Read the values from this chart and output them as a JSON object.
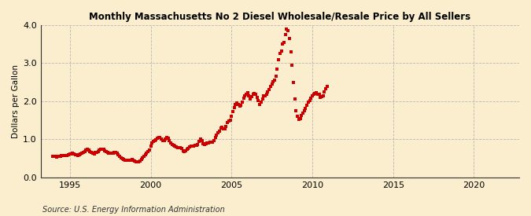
{
  "title": "Monthly Massachusetts No 2 Diesel Wholesale/Resale Price by All Sellers",
  "ylabel": "Dollars per Gallon",
  "source": "Source: U.S. Energy Information Administration",
  "background_color": "#faeecf",
  "dot_color": "#cc0000",
  "xlim": [
    1993.2,
    2022.8
  ],
  "ylim": [
    0.0,
    4.0
  ],
  "yticks": [
    0.0,
    1.0,
    2.0,
    3.0,
    4.0
  ],
  "xticks": [
    1995,
    2000,
    2005,
    2010,
    2015,
    2020
  ],
  "data": [
    [
      1993.917,
      0.56
    ],
    [
      1994.0,
      0.55
    ],
    [
      1994.083,
      0.55
    ],
    [
      1994.167,
      0.54
    ],
    [
      1994.25,
      0.55
    ],
    [
      1994.333,
      0.55
    ],
    [
      1994.417,
      0.56
    ],
    [
      1994.5,
      0.57
    ],
    [
      1994.583,
      0.58
    ],
    [
      1994.667,
      0.57
    ],
    [
      1994.75,
      0.57
    ],
    [
      1994.833,
      0.58
    ],
    [
      1994.917,
      0.6
    ],
    [
      1995.0,
      0.61
    ],
    [
      1995.083,
      0.61
    ],
    [
      1995.167,
      0.63
    ],
    [
      1995.25,
      0.62
    ],
    [
      1995.333,
      0.6
    ],
    [
      1995.417,
      0.59
    ],
    [
      1995.5,
      0.58
    ],
    [
      1995.583,
      0.59
    ],
    [
      1995.667,
      0.61
    ],
    [
      1995.75,
      0.64
    ],
    [
      1995.833,
      0.66
    ],
    [
      1995.917,
      0.68
    ],
    [
      1996.0,
      0.72
    ],
    [
      1996.083,
      0.73
    ],
    [
      1996.167,
      0.72
    ],
    [
      1996.25,
      0.68
    ],
    [
      1996.333,
      0.65
    ],
    [
      1996.417,
      0.63
    ],
    [
      1996.5,
      0.62
    ],
    [
      1996.583,
      0.65
    ],
    [
      1996.667,
      0.66
    ],
    [
      1996.75,
      0.68
    ],
    [
      1996.833,
      0.72
    ],
    [
      1996.917,
      0.74
    ],
    [
      1997.0,
      0.75
    ],
    [
      1997.083,
      0.73
    ],
    [
      1997.167,
      0.7
    ],
    [
      1997.25,
      0.68
    ],
    [
      1997.333,
      0.65
    ],
    [
      1997.417,
      0.64
    ],
    [
      1997.5,
      0.63
    ],
    [
      1997.583,
      0.63
    ],
    [
      1997.667,
      0.64
    ],
    [
      1997.75,
      0.65
    ],
    [
      1997.833,
      0.65
    ],
    [
      1997.917,
      0.63
    ],
    [
      1998.0,
      0.6
    ],
    [
      1998.083,
      0.56
    ],
    [
      1998.167,
      0.52
    ],
    [
      1998.25,
      0.49
    ],
    [
      1998.333,
      0.47
    ],
    [
      1998.417,
      0.46
    ],
    [
      1998.5,
      0.45
    ],
    [
      1998.583,
      0.46
    ],
    [
      1998.667,
      0.46
    ],
    [
      1998.75,
      0.46
    ],
    [
      1998.833,
      0.47
    ],
    [
      1998.917,
      0.46
    ],
    [
      1999.0,
      0.43
    ],
    [
      1999.083,
      0.4
    ],
    [
      1999.167,
      0.4
    ],
    [
      1999.25,
      0.42
    ],
    [
      1999.333,
      0.44
    ],
    [
      1999.417,
      0.48
    ],
    [
      1999.5,
      0.52
    ],
    [
      1999.583,
      0.55
    ],
    [
      1999.667,
      0.6
    ],
    [
      1999.75,
      0.64
    ],
    [
      1999.833,
      0.68
    ],
    [
      1999.917,
      0.72
    ],
    [
      2000.0,
      0.82
    ],
    [
      2000.083,
      0.9
    ],
    [
      2000.167,
      0.95
    ],
    [
      2000.25,
      0.96
    ],
    [
      2000.333,
      0.98
    ],
    [
      2000.417,
      1.02
    ],
    [
      2000.5,
      1.05
    ],
    [
      2000.583,
      1.04
    ],
    [
      2000.667,
      1.0
    ],
    [
      2000.75,
      0.96
    ],
    [
      2000.833,
      0.97
    ],
    [
      2000.917,
      1.01
    ],
    [
      2001.0,
      1.05
    ],
    [
      2001.083,
      1.02
    ],
    [
      2001.167,
      0.96
    ],
    [
      2001.25,
      0.9
    ],
    [
      2001.333,
      0.87
    ],
    [
      2001.417,
      0.85
    ],
    [
      2001.5,
      0.82
    ],
    [
      2001.583,
      0.8
    ],
    [
      2001.667,
      0.78
    ],
    [
      2001.75,
      0.78
    ],
    [
      2001.833,
      0.78
    ],
    [
      2001.917,
      0.76
    ],
    [
      2002.0,
      0.7
    ],
    [
      2002.083,
      0.68
    ],
    [
      2002.167,
      0.7
    ],
    [
      2002.25,
      0.74
    ],
    [
      2002.333,
      0.76
    ],
    [
      2002.417,
      0.8
    ],
    [
      2002.5,
      0.82
    ],
    [
      2002.583,
      0.83
    ],
    [
      2002.667,
      0.83
    ],
    [
      2002.75,
      0.84
    ],
    [
      2002.833,
      0.85
    ],
    [
      2002.917,
      0.87
    ],
    [
      2003.0,
      0.95
    ],
    [
      2003.083,
      1.0
    ],
    [
      2003.167,
      0.97
    ],
    [
      2003.25,
      0.88
    ],
    [
      2003.333,
      0.86
    ],
    [
      2003.417,
      0.88
    ],
    [
      2003.5,
      0.9
    ],
    [
      2003.583,
      0.91
    ],
    [
      2003.667,
      0.93
    ],
    [
      2003.75,
      0.93
    ],
    [
      2003.833,
      0.93
    ],
    [
      2003.917,
      0.96
    ],
    [
      2004.0,
      1.05
    ],
    [
      2004.083,
      1.12
    ],
    [
      2004.167,
      1.18
    ],
    [
      2004.25,
      1.21
    ],
    [
      2004.333,
      1.3
    ],
    [
      2004.417,
      1.32
    ],
    [
      2004.5,
      1.28
    ],
    [
      2004.583,
      1.27
    ],
    [
      2004.667,
      1.34
    ],
    [
      2004.75,
      1.45
    ],
    [
      2004.833,
      1.48
    ],
    [
      2004.917,
      1.5
    ],
    [
      2005.0,
      1.6
    ],
    [
      2005.083,
      1.73
    ],
    [
      2005.167,
      1.83
    ],
    [
      2005.25,
      1.92
    ],
    [
      2005.333,
      1.95
    ],
    [
      2005.417,
      1.92
    ],
    [
      2005.5,
      1.88
    ],
    [
      2005.583,
      1.9
    ],
    [
      2005.667,
      1.98
    ],
    [
      2005.75,
      2.08
    ],
    [
      2005.833,
      2.15
    ],
    [
      2005.917,
      2.18
    ],
    [
      2006.0,
      2.22
    ],
    [
      2006.083,
      2.15
    ],
    [
      2006.167,
      2.05
    ],
    [
      2006.25,
      2.12
    ],
    [
      2006.333,
      2.18
    ],
    [
      2006.417,
      2.2
    ],
    [
      2006.5,
      2.18
    ],
    [
      2006.583,
      2.1
    ],
    [
      2006.667,
      2.02
    ],
    [
      2006.75,
      1.92
    ],
    [
      2006.833,
      1.98
    ],
    [
      2006.917,
      2.05
    ],
    [
      2007.0,
      2.15
    ],
    [
      2007.083,
      2.15
    ],
    [
      2007.167,
      2.18
    ],
    [
      2007.25,
      2.25
    ],
    [
      2007.333,
      2.3
    ],
    [
      2007.417,
      2.38
    ],
    [
      2007.5,
      2.45
    ],
    [
      2007.583,
      2.52
    ],
    [
      2007.667,
      2.55
    ],
    [
      2007.75,
      2.65
    ],
    [
      2007.833,
      2.85
    ],
    [
      2007.917,
      3.1
    ],
    [
      2008.0,
      3.25
    ],
    [
      2008.083,
      3.32
    ],
    [
      2008.167,
      3.5
    ],
    [
      2008.25,
      3.55
    ],
    [
      2008.333,
      3.75
    ],
    [
      2008.417,
      3.9
    ],
    [
      2008.5,
      3.85
    ],
    [
      2008.583,
      3.65
    ],
    [
      2008.667,
      3.3
    ],
    [
      2008.75,
      2.95
    ],
    [
      2008.833,
      2.5
    ],
    [
      2008.917,
      2.05
    ],
    [
      2009.0,
      1.75
    ],
    [
      2009.083,
      1.6
    ],
    [
      2009.167,
      1.52
    ],
    [
      2009.25,
      1.55
    ],
    [
      2009.333,
      1.62
    ],
    [
      2009.417,
      1.68
    ],
    [
      2009.5,
      1.75
    ],
    [
      2009.583,
      1.82
    ],
    [
      2009.667,
      1.9
    ],
    [
      2009.75,
      1.98
    ],
    [
      2009.833,
      2.02
    ],
    [
      2009.917,
      2.08
    ],
    [
      2010.0,
      2.15
    ],
    [
      2010.083,
      2.18
    ],
    [
      2010.167,
      2.2
    ],
    [
      2010.25,
      2.22
    ],
    [
      2010.333,
      2.18
    ],
    [
      2010.417,
      2.18
    ],
    [
      2010.5,
      2.1
    ],
    [
      2010.583,
      2.12
    ],
    [
      2010.667,
      2.15
    ],
    [
      2010.75,
      2.25
    ],
    [
      2010.833,
      2.32
    ],
    [
      2010.917,
      2.38
    ]
  ]
}
